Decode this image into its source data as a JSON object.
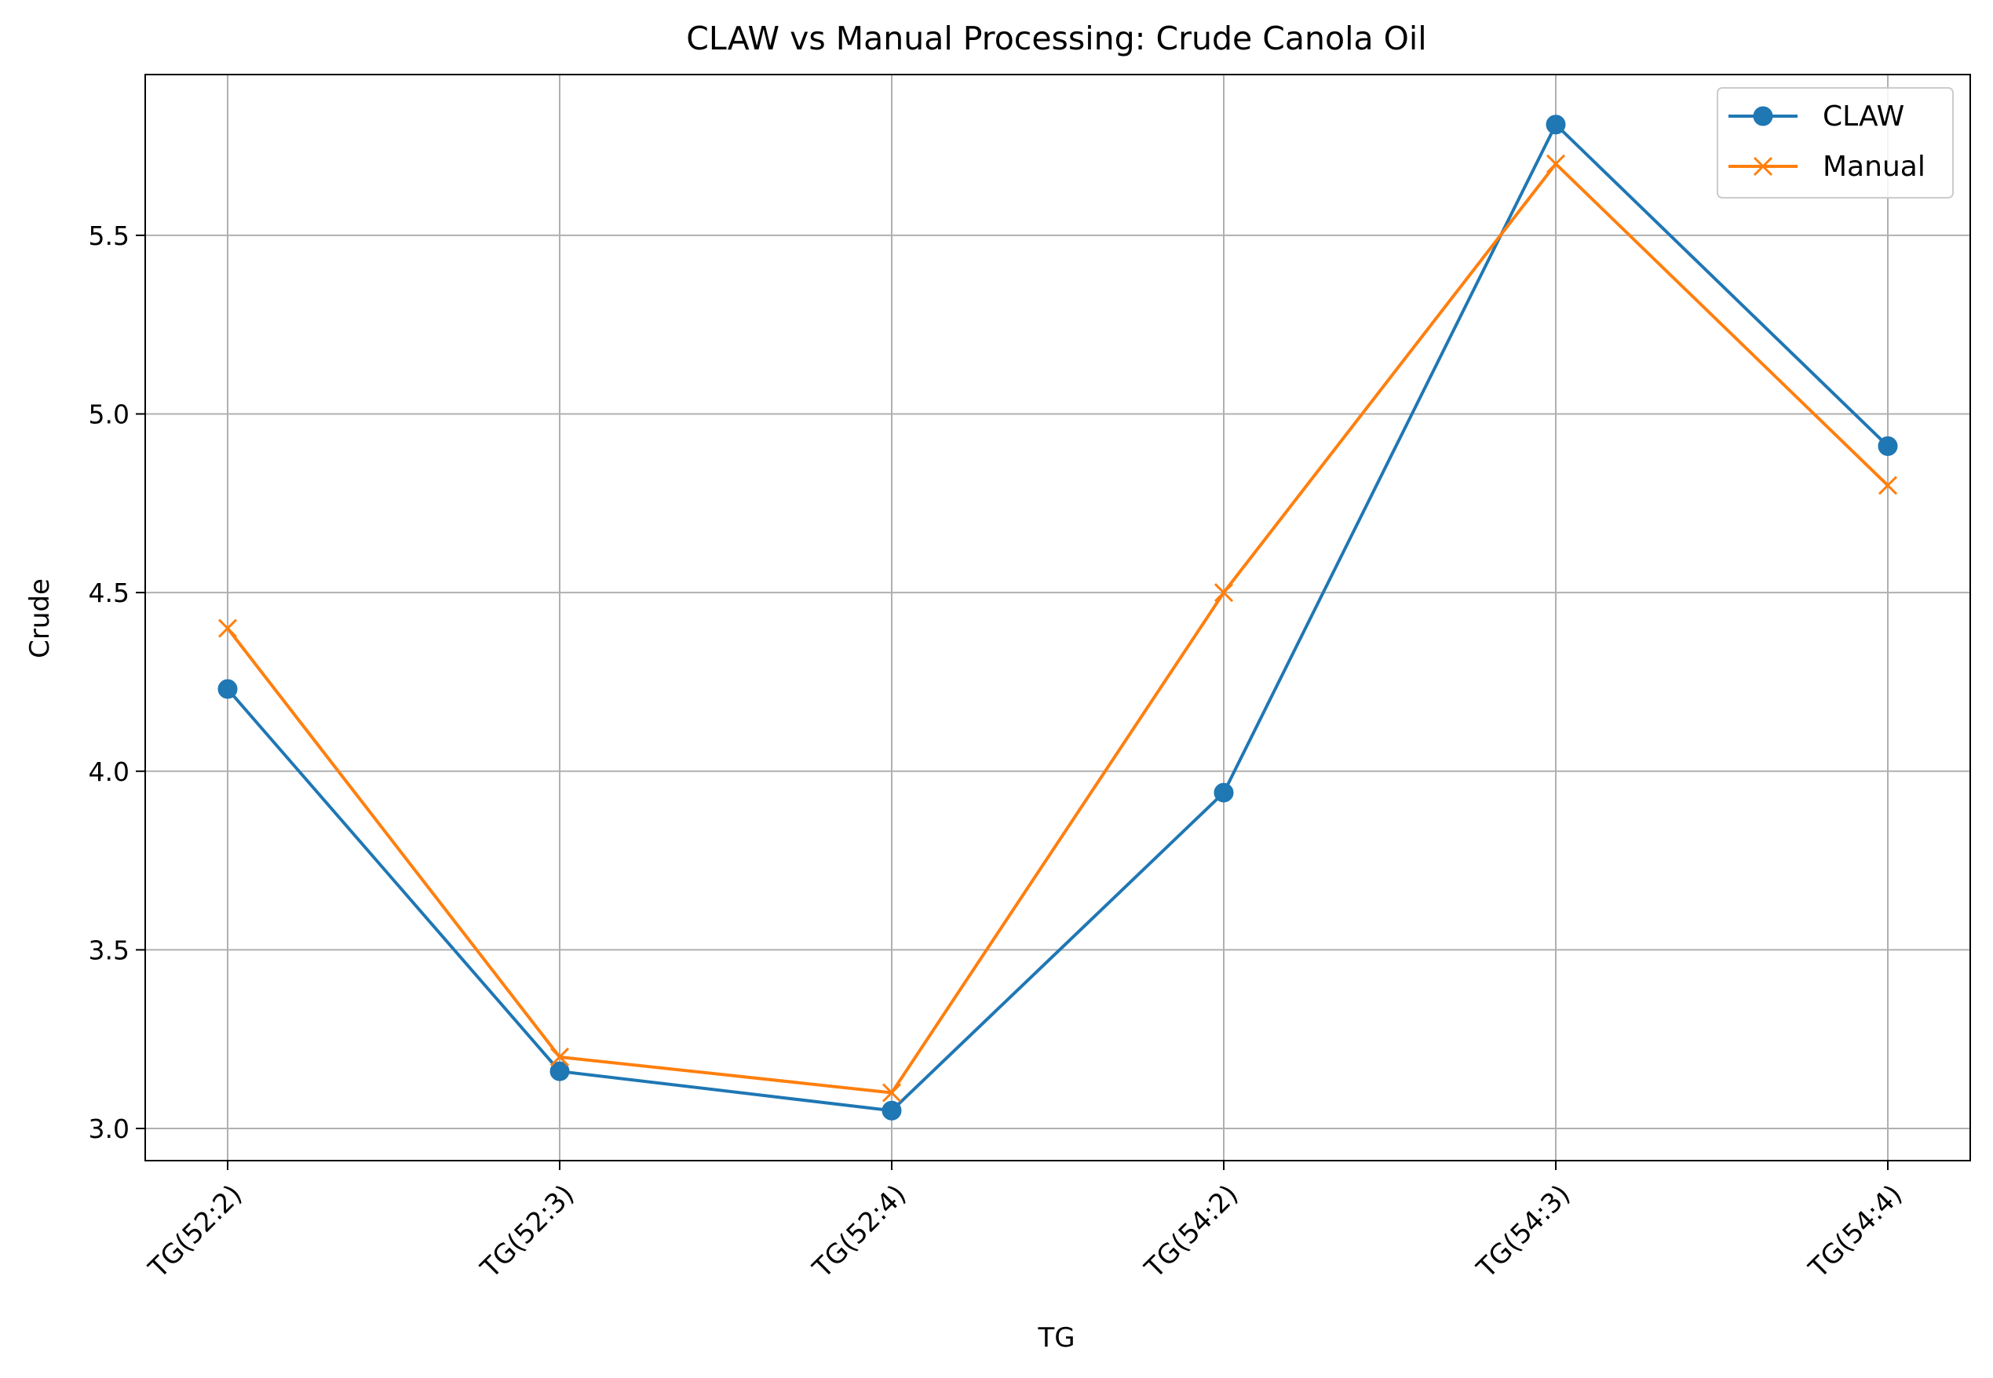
{
  "chart_data": {
    "type": "line",
    "title": "CLAW vs Manual Processing: Crude Canola Oil",
    "xlabel": "TG",
    "ylabel": "Crude",
    "categories": [
      "TG(52:2)",
      "TG(52:3)",
      "TG(52:4)",
      "TG(54:2)",
      "TG(54:3)",
      "TG(54:4)"
    ],
    "series": [
      {
        "name": "CLAW",
        "values": [
          4.23,
          3.16,
          3.05,
          3.94,
          5.81,
          4.91
        ],
        "color": "#1f77b4",
        "marker": "circle"
      },
      {
        "name": "Manual",
        "values": [
          4.4,
          3.2,
          3.1,
          4.5,
          5.7,
          4.8
        ],
        "color": "#ff7f0e",
        "marker": "x"
      }
    ],
    "ylim": [
      2.91,
      5.95
    ],
    "yticks": [
      "3.0",
      "3.5",
      "4.0",
      "4.5",
      "5.0",
      "5.5"
    ],
    "grid": true,
    "legend_position": "top-right"
  }
}
